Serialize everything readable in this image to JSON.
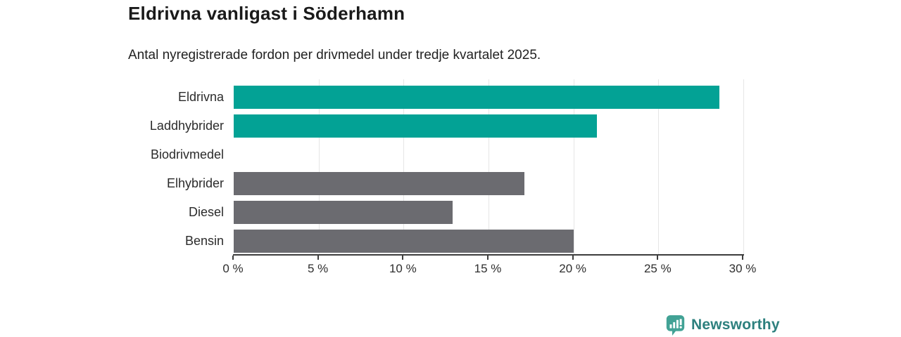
{
  "header": {
    "title": "Eldrivna vanligast i Söderhamn",
    "subtitle": "Antal nyregistrerade fordon per drivmedel under tredje kvartalet 2025."
  },
  "chart_data": {
    "type": "bar",
    "orientation": "horizontal",
    "title": "Eldrivna vanligast i Söderhamn",
    "subtitle": "Antal nyregistrerade fordon per drivmedel under tredje kvartalet 2025.",
    "categories": [
      "Eldrivna",
      "Laddhybrider",
      "Biodrivmedel",
      "Elhybrider",
      "Diesel",
      "Bensin"
    ],
    "values": [
      28.6,
      21.4,
      0,
      17.1,
      12.9,
      20.0
    ],
    "unit": "%",
    "xlim": [
      0,
      30
    ],
    "x_tick_values": [
      0,
      5,
      10,
      15,
      20,
      25,
      30
    ],
    "x_tick_labels": [
      "0 %",
      "5 %",
      "10 %",
      "15 %",
      "20 %",
      "25 %",
      "30 %"
    ],
    "grid": true,
    "gridline_color": "#e6e6e6",
    "axis_color": "#3d3d3d",
    "bar_colors": [
      "#03a295",
      "#03a295",
      "#6b6b70",
      "#6b6b70",
      "#6b6b70",
      "#6b6b70"
    ],
    "highlight_color": "#03a295",
    "default_color": "#6b6b70",
    "legend": "none"
  },
  "footer": {
    "brand": "Newsworthy",
    "brand_text_color": "#2d807e",
    "icon": "bar-chart-speech-bubble-icon",
    "icon_color": "#42a295"
  }
}
